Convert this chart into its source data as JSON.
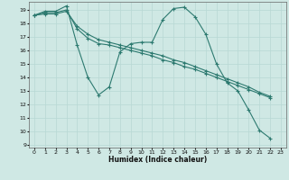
{
  "xlabel": "Humidex (Indice chaleur)",
  "background_color": "#cfe8e4",
  "grid_color": "#b8d8d4",
  "line_color": "#2d7a70",
  "xlim": [
    -0.5,
    23.5
  ],
  "ylim": [
    8.8,
    19.6
  ],
  "yticks": [
    9,
    10,
    11,
    12,
    13,
    14,
    15,
    16,
    17,
    18,
    19
  ],
  "xticks": [
    0,
    1,
    2,
    3,
    4,
    5,
    6,
    7,
    8,
    9,
    10,
    11,
    12,
    13,
    14,
    15,
    16,
    17,
    18,
    19,
    20,
    21,
    22,
    23
  ],
  "line1_x": [
    0,
    1,
    2,
    3,
    4,
    5,
    6,
    7,
    8,
    9,
    10,
    11,
    12,
    13,
    14,
    15,
    16,
    17,
    18,
    19,
    20,
    21,
    22
  ],
  "line1_y": [
    18.6,
    18.9,
    18.9,
    19.3,
    16.4,
    14.0,
    12.7,
    13.3,
    15.9,
    16.5,
    16.6,
    16.6,
    18.3,
    19.1,
    19.2,
    18.5,
    17.2,
    15.0,
    13.6,
    13.0,
    11.6,
    10.1,
    9.5
  ],
  "line2_x": [
    0,
    1,
    2,
    3,
    4,
    5,
    6,
    7,
    8,
    9,
    10,
    11,
    12,
    13,
    14,
    15,
    16,
    17,
    18,
    19,
    20,
    21,
    22
  ],
  "line2_y": [
    18.6,
    18.7,
    18.7,
    18.9,
    17.8,
    17.2,
    16.8,
    16.6,
    16.4,
    16.2,
    16.0,
    15.8,
    15.6,
    15.3,
    15.1,
    14.8,
    14.5,
    14.2,
    13.9,
    13.6,
    13.3,
    12.9,
    12.6
  ],
  "line3_x": [
    0,
    1,
    2,
    3,
    4,
    5,
    6,
    7,
    8,
    9,
    10,
    11,
    12,
    13,
    14,
    15,
    16,
    17,
    18,
    19,
    20,
    21,
    22
  ],
  "line3_y": [
    18.6,
    18.8,
    18.8,
    19.0,
    17.6,
    16.9,
    16.5,
    16.4,
    16.2,
    16.0,
    15.8,
    15.6,
    15.3,
    15.1,
    14.8,
    14.6,
    14.3,
    14.0,
    13.7,
    13.4,
    13.1,
    12.8,
    12.5
  ]
}
